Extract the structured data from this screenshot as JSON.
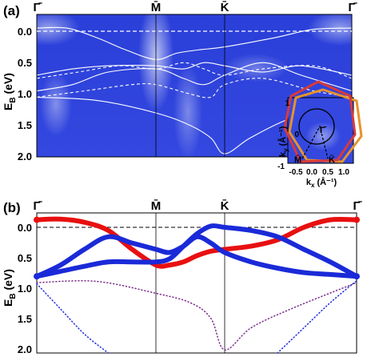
{
  "panels": {
    "a": {
      "label": "(a)"
    },
    "b": {
      "label": "(b)"
    }
  },
  "path_labels": [
    "Γ̄",
    "M̄",
    "K̄",
    "Γ̄"
  ],
  "ylabel_main": "E",
  "ylabel_sub": "B",
  "ylabel_unit": " (eV)",
  "y_ticks": [
    "0.0",
    "0.5",
    "1.0",
    "1.5",
    "2.0"
  ],
  "inset": {
    "xlabel_main": "k",
    "xlabel_sub": "x",
    "xlabel_unit": " (Å⁻¹)",
    "ylabel_main": "k",
    "ylabel_sub": "y",
    "ylabel_unit": " (Å⁻¹)",
    "x_ticks": [
      "-0.5",
      "0.0",
      "0.5",
      "1.0"
    ],
    "y_ticks": [
      "1",
      "0",
      "-1"
    ],
    "points": [
      "Γ̄",
      "M̄",
      "K̄"
    ]
  },
  "colors": {
    "arpes_bg": "#3a4fe0",
    "red_band": "#e81010",
    "blue_band": "#1a2ad8",
    "purple_band": "#7a2a8a",
    "hexagon_red": "#d83a3a",
    "hexagon_orange": "#e8922a"
  },
  "chart_data": [
    {
      "panel": "a",
      "type": "line",
      "description_source": "ARPES intensity map with calculated bands",
      "x": [
        0,
        1,
        2,
        3
      ],
      "x_tick_labels": [
        "Γ̄",
        "M̄",
        "K̄",
        "Γ̄"
      ],
      "ylabel": "E_B (eV)",
      "ylim": [
        2.0,
        -0.2
      ],
      "fermi_level": 0.0,
      "series": [
        {
          "style": "solid",
          "x": [
            0,
            0.25,
            0.5,
            0.75,
            1,
            1.3,
            1.6,
            2,
            2.4,
            2.7,
            3
          ],
          "y": [
            -0.05,
            -0.05,
            0.1,
            0.3,
            0.45,
            0.35,
            0.3,
            0.25,
            0.1,
            -0.03,
            -0.05
          ]
        },
        {
          "style": "solid",
          "x": [
            0,
            0.3,
            0.6,
            1,
            1.4,
            1.7,
            2,
            2.3,
            2.6,
            3
          ],
          "y": [
            0.7,
            0.6,
            0.55,
            0.55,
            0.6,
            0.5,
            0.55,
            0.65,
            0.55,
            0.7
          ]
        },
        {
          "style": "solid",
          "x": [
            0,
            0.3,
            0.6,
            1,
            1.4,
            1.7,
            2,
            2.3,
            2.6,
            3
          ],
          "y": [
            0.95,
            0.85,
            0.65,
            0.6,
            0.75,
            0.85,
            0.7,
            0.5,
            0.7,
            0.95
          ]
        },
        {
          "style": "solid",
          "x": [
            0,
            0.5,
            1,
            1.5,
            1.8,
            2,
            2.2,
            2.5,
            3
          ],
          "y": [
            1.05,
            1.1,
            1.3,
            1.5,
            1.7,
            1.95,
            1.7,
            1.4,
            1.05
          ]
        },
        {
          "style": "dashed",
          "x": [
            0,
            0.35,
            0.7,
            1,
            1.4,
            1.7,
            2,
            2.3,
            2.7,
            3
          ],
          "y": [
            0.75,
            0.65,
            0.55,
            0.6,
            0.5,
            0.6,
            0.7,
            0.6,
            0.55,
            0.75
          ]
        },
        {
          "style": "dashed",
          "x": [
            0,
            0.4,
            0.8,
            1,
            1.5,
            1.8,
            2,
            2.3,
            2.7,
            3
          ],
          "y": [
            1.05,
            0.95,
            0.85,
            0.85,
            1.0,
            1.05,
            0.85,
            0.75,
            0.95,
            1.05
          ]
        }
      ]
    },
    {
      "panel": "b",
      "type": "scatter",
      "description_source": "calculated band structure with projected weights",
      "x": [
        0,
        1,
        2,
        3
      ],
      "x_tick_labels": [
        "Γ̄",
        "M̄",
        "K̄",
        "Γ̄"
      ],
      "ylabel": "E_B (eV)",
      "ylim": [
        2.0,
        -0.2
      ],
      "fermi_level": 0.0,
      "series": [
        {
          "color": "red",
          "x": [
            0,
            0.2,
            0.4,
            0.6,
            0.8,
            1,
            1.2,
            1.4,
            1.6,
            1.8,
            2,
            2.2,
            2.4,
            2.6,
            2.8,
            3
          ],
          "y": [
            -0.12,
            -0.13,
            -0.08,
            0.05,
            0.35,
            0.6,
            0.6,
            0.55,
            0.45,
            0.38,
            0.35,
            0.3,
            0.2,
            0.0,
            -0.12,
            -0.12
          ]
        },
        {
          "color": "blue",
          "x": [
            0,
            0.2,
            0.4,
            0.6,
            0.8,
            1,
            1.2,
            1.4,
            1.6,
            1.8,
            2,
            2.2,
            2.4,
            2.6,
            2.8,
            3
          ],
          "y": [
            0.78,
            0.6,
            0.35,
            0.15,
            0.25,
            0.35,
            0.4,
            0.3,
            0.15,
            0.25,
            0.4,
            0.55,
            0.65,
            0.72,
            0.75,
            0.78
          ]
        },
        {
          "color": "blue",
          "x": [
            0,
            0.2,
            0.4,
            0.6,
            0.8,
            1,
            1.2,
            1.4,
            1.6,
            1.8,
            2,
            2.2,
            2.4,
            2.6,
            2.8,
            3
          ],
          "y": [
            0.78,
            0.7,
            0.62,
            0.55,
            0.55,
            0.55,
            0.5,
            0.3,
            0.1,
            -0.02,
            0.0,
            0.05,
            0.15,
            0.35,
            0.55,
            0.78
          ]
        },
        {
          "color": "purple",
          "x": [
            0,
            0.5,
            1,
            1.5,
            1.8,
            2,
            2.2,
            2.5,
            3
          ],
          "y": [
            0.88,
            0.86,
            1.05,
            1.2,
            1.45,
            1.95,
            1.6,
            1.3,
            0.88
          ]
        },
        {
          "color": "blue-dotted",
          "x": [
            0,
            0.2,
            0.4,
            0.6
          ],
          "y": [
            0.9,
            1.3,
            1.7,
            2.0
          ]
        },
        {
          "color": "blue-dotted",
          "x": [
            2.4,
            2.6,
            2.8,
            3
          ],
          "y": [
            2.0,
            1.6,
            1.2,
            0.85
          ]
        }
      ]
    }
  ]
}
